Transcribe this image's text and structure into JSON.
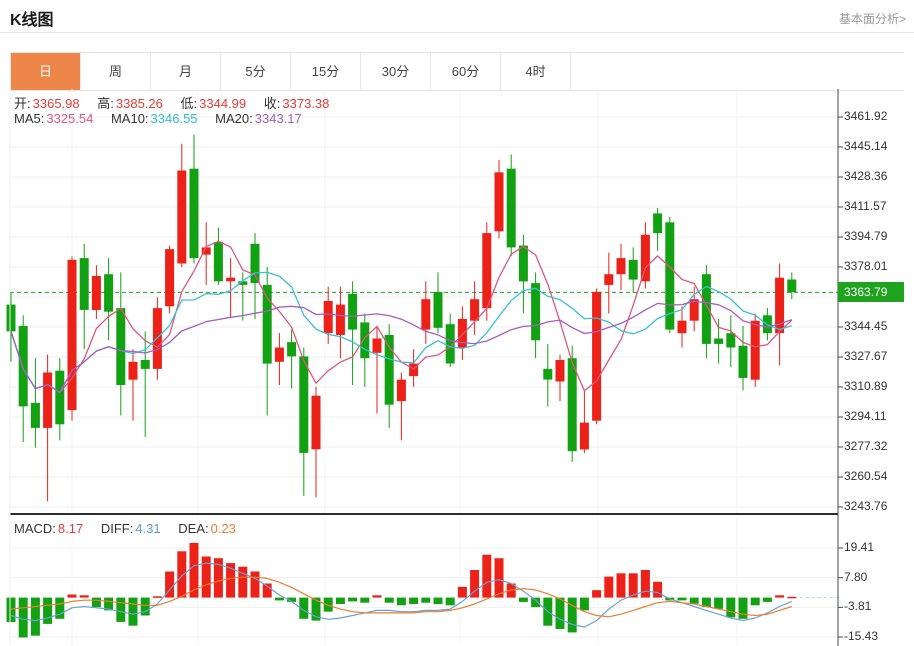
{
  "page": {
    "title": "K线图",
    "link": "基本面分析>"
  },
  "tabs": {
    "active_index": 0,
    "items": [
      {
        "label": "日",
        "name": "tab-day"
      },
      {
        "label": "周",
        "name": "tab-week"
      },
      {
        "label": "月",
        "name": "tab-month"
      },
      {
        "label": "5分",
        "name": "tab-5min"
      },
      {
        "label": "15分",
        "name": "tab-15min"
      },
      {
        "label": "30分",
        "name": "tab-30min"
      },
      {
        "label": "60分",
        "name": "tab-60min"
      },
      {
        "label": "4时",
        "name": "tab-4hour"
      }
    ]
  },
  "ohlc": {
    "open_label": "开:",
    "open": "3365.98",
    "high_label": "高:",
    "high": "3385.26",
    "low_label": "低:",
    "low": "3344.99",
    "close_label": "收:",
    "close": "3373.38"
  },
  "ma": {
    "ma5_label": "MA5:",
    "ma5": "3325.54",
    "ma10_label": "MA10:",
    "ma10": "3346.55",
    "ma20_label": "MA20:",
    "ma20": "3343.17"
  },
  "macd_header": {
    "macd_label": "MACD:",
    "macd": "8.17",
    "diff_label": "DIFF:",
    "diff": "4.31",
    "dea_label": "DEA:",
    "dea": "0.23"
  },
  "price_axis": {
    "ticks": [
      "3461.92",
      "3445.14",
      "3428.36",
      "3411.57",
      "3394.79",
      "3378.01",
      "3344.45",
      "3327.67",
      "3310.89",
      "3294.11",
      "3277.32",
      "3260.54",
      "3243.76"
    ],
    "badge": "3363.79"
  },
  "macd_axis": {
    "ticks": [
      "19.41",
      "7.80",
      "-3.81",
      "-15.43"
    ]
  },
  "colors": {
    "up": "#ec2117",
    "down": "#12a112",
    "accent_tab": "#ee8549",
    "ma5": "#e0557d",
    "ma10": "#3bbfd4",
    "ma20": "#a35ec2",
    "diff": "#6b9fd8",
    "dea": "#ed7d31",
    "badge": "#1fa31f",
    "current_line": "#1fa31f",
    "zero_dash": "#a9d7ee"
  },
  "chart_data": {
    "type": "candlestick",
    "title": "K线图 (日)",
    "price_axis_range": [
      3243.76,
      3461.92
    ],
    "price_gridlines": [
      3461.92,
      3445.14,
      3428.36,
      3411.57,
      3394.79,
      3378.01,
      3361.23,
      3344.45,
      3327.67,
      3310.89,
      3294.11,
      3277.32,
      3260.54,
      3243.76
    ],
    "current_price": 3363.79,
    "ohlc_display": {
      "open": 3365.98,
      "high": 3385.26,
      "low": 3344.99,
      "close": 3373.38
    },
    "ma_display": {
      "ma5": 3325.54,
      "ma10": 3346.55,
      "ma20": 3343.17
    },
    "candles_format": [
      "open",
      "high",
      "low",
      "close"
    ],
    "candles": [
      [
        3357,
        3364,
        3325,
        3342
      ],
      [
        3345,
        3351,
        3280,
        3300
      ],
      [
        3302,
        3327,
        3277,
        3288
      ],
      [
        3288,
        3329,
        3247,
        3319
      ],
      [
        3320,
        3327,
        3281,
        3290
      ],
      [
        3298,
        3384,
        3292,
        3382
      ],
      [
        3383,
        3391,
        3332,
        3354
      ],
      [
        3354,
        3379,
        3349,
        3373
      ],
      [
        3374,
        3383,
        3337,
        3353
      ],
      [
        3355,
        3375,
        3295,
        3312
      ],
      [
        3315,
        3332,
        3292,
        3325
      ],
      [
        3326,
        3342,
        3283,
        3321
      ],
      [
        3321,
        3361,
        3315,
        3355
      ],
      [
        3356,
        3390,
        3352,
        3388
      ],
      [
        3380,
        3447,
        3378,
        3432
      ],
      [
        3433,
        3452,
        3380,
        3383
      ],
      [
        3385,
        3403,
        3368,
        3389
      ],
      [
        3392,
        3400,
        3368,
        3370
      ],
      [
        3370,
        3383,
        3350,
        3372
      ],
      [
        3370,
        3375,
        3348,
        3368
      ],
      [
        3391,
        3397,
        3349,
        3369
      ],
      [
        3368,
        3378,
        3295,
        3324
      ],
      [
        3325,
        3341,
        3312,
        3333
      ],
      [
        3336,
        3343,
        3310,
        3328
      ],
      [
        3328,
        3333,
        3250,
        3274
      ],
      [
        3276,
        3311,
        3249,
        3306
      ],
      [
        3341,
        3367,
        3335,
        3359
      ],
      [
        3340,
        3367,
        3327,
        3357
      ],
      [
        3363,
        3370,
        3312,
        3343
      ],
      [
        3347,
        3352,
        3311,
        3327
      ],
      [
        3330,
        3345,
        3296,
        3338
      ],
      [
        3340,
        3346,
        3288,
        3301
      ],
      [
        3303,
        3319,
        3281,
        3315
      ],
      [
        3317,
        3332,
        3311,
        3324
      ],
      [
        3343,
        3370,
        3335,
        3360
      ],
      [
        3364,
        3375,
        3341,
        3344
      ],
      [
        3346,
        3352,
        3322,
        3324
      ],
      [
        3333,
        3356,
        3326,
        3349
      ],
      [
        3348,
        3370,
        3340,
        3360
      ],
      [
        3355,
        3403,
        3348,
        3397
      ],
      [
        3398,
        3438,
        3394,
        3431
      ],
      [
        3433,
        3441,
        3384,
        3389
      ],
      [
        3390,
        3396,
        3352,
        3370
      ],
      [
        3369,
        3375,
        3327,
        3337
      ],
      [
        3321,
        3335,
        3300,
        3315
      ],
      [
        3314,
        3329,
        3303,
        3326
      ],
      [
        3327,
        3334,
        3269,
        3275
      ],
      [
        3276,
        3309,
        3274,
        3291
      ],
      [
        3292,
        3366,
        3290,
        3364
      ],
      [
        3368,
        3386,
        3352,
        3374
      ],
      [
        3374,
        3391,
        3365,
        3383
      ],
      [
        3382,
        3389,
        3364,
        3371
      ],
      [
        3370,
        3403,
        3366,
        3396
      ],
      [
        3408,
        3411,
        3387,
        3397
      ],
      [
        3403,
        3406,
        3341,
        3343
      ],
      [
        3341,
        3356,
        3333,
        3348
      ],
      [
        3348,
        3367,
        3342,
        3360
      ],
      [
        3374,
        3379,
        3327,
        3335
      ],
      [
        3338,
        3349,
        3324,
        3335
      ],
      [
        3341,
        3351,
        3322,
        3333
      ],
      [
        3334,
        3345,
        3309,
        3316
      ],
      [
        3315,
        3352,
        3311,
        3348
      ],
      [
        3351,
        3355,
        3337,
        3341
      ],
      [
        3341,
        3380,
        3323,
        3372
      ],
      [
        3371,
        3375,
        3360,
        3364
      ]
    ],
    "macd_ticks": [
      19.41,
      7.8,
      -3.81,
      -15.43
    ],
    "macd_display": {
      "macd": 8.17,
      "diff": 4.31,
      "dea": 0.23
    },
    "macd_hist": [
      -9.6,
      -15.6,
      -14.9,
      -10.3,
      -8.3,
      1.2,
      0.9,
      -3.7,
      -5.0,
      -9.5,
      -11.0,
      -7.0,
      0.5,
      10.2,
      18.1,
      21.4,
      16.1,
      15.4,
      13.5,
      12.1,
      10.2,
      5.5,
      -1.1,
      -1.7,
      -8.3,
      -9.0,
      -5.5,
      -2.5,
      -1.5,
      -2.0,
      0.9,
      -2.0,
      -3.0,
      -2.5,
      -2.0,
      -2.5,
      -3.0,
      4.2,
      10.8,
      16.8,
      15.4,
      5.5,
      -1.7,
      -3.7,
      -11.0,
      -12.3,
      -13.6,
      -5.0,
      2.9,
      8.2,
      9.5,
      9.5,
      10.8,
      6.2,
      -1.1,
      -1.1,
      -2.4,
      -3.7,
      -4.4,
      -7.7,
      -8.3,
      -3.0,
      -1.7,
      0.9,
      0.3
    ],
    "macd_diff": [
      -7,
      -8.5,
      -9,
      -8,
      -6.5,
      -4,
      -3.5,
      -4,
      -4.5,
      -5.5,
      -6.5,
      -5.5,
      -2.5,
      3,
      8.5,
      12.5,
      13.5,
      13,
      11.5,
      9.5,
      7.5,
      4.5,
      1,
      -1.5,
      -5,
      -7.5,
      -8.5,
      -8,
      -7,
      -6,
      -5,
      -5,
      -5.5,
      -5.5,
      -5,
      -5,
      -4.5,
      -1.5,
      2.5,
      6,
      7,
      5.5,
      2.5,
      -1,
      -5.5,
      -8.5,
      -10.5,
      -11.5,
      -9,
      -4.5,
      -1,
      1,
      2.5,
      2,
      -0.5,
      -2,
      -3.5,
      -5,
      -6.5,
      -8,
      -9,
      -8,
      -6,
      -3.5,
      -1.5
    ],
    "macd_dea": [
      -4.5,
      -4,
      -3.5,
      -3,
      -2.5,
      -1.5,
      -1,
      -1,
      -1.5,
      -2,
      -2.5,
      -3,
      -3,
      -1.5,
      0.5,
      3,
      5,
      6.5,
      7.5,
      8,
      8,
      7.5,
      6,
      4,
      1.5,
      -1,
      -3,
      -4.5,
      -5.5,
      -6,
      -6,
      -6,
      -6,
      -6,
      -5.5,
      -5.5,
      -5,
      -4,
      -2.5,
      -0.5,
      1.5,
      3,
      3.5,
      3,
      1.5,
      -0.5,
      -3,
      -5.5,
      -7,
      -7.5,
      -6.5,
      -5,
      -3.5,
      -2,
      -1.5,
      -2,
      -2.5,
      -3.5,
      -4.5,
      -5.5,
      -6.5,
      -7,
      -6.5,
      -5,
      -3.5
    ]
  }
}
